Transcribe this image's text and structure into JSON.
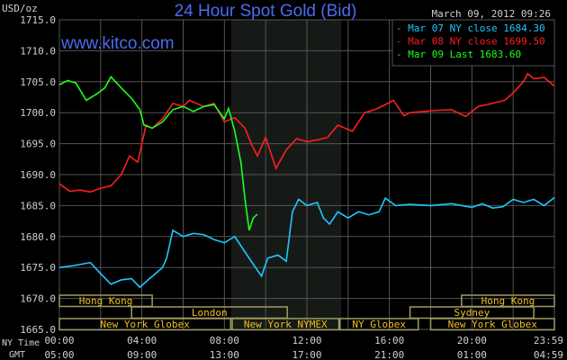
{
  "chart_data": {
    "type": "line",
    "title": "24 Hour Spot Gold (Bid)",
    "watermark": "www.kitco.com",
    "timestamp": "March 09, 2012 09:26",
    "ylabel": "USD/oz",
    "ylim": [
      1665,
      1715
    ],
    "yticks": [
      "1715.0",
      "1710.0",
      "1705.0",
      "1700.0",
      "1695.0",
      "1690.0",
      "1685.0",
      "1680.0",
      "1675.0",
      "1670.0",
      "1665.0"
    ],
    "xlim": [
      0,
      24
    ],
    "x_row1_label": "NY Time",
    "x_row2_label": "GMT",
    "xticks_ny": [
      "00:00",
      "04:00",
      "08:00",
      "12:00",
      "16:00",
      "20:00",
      "23:59"
    ],
    "xticks_gmt": [
      "05:00",
      "09:00",
      "13:00",
      "17:00",
      "21:00",
      "01:00",
      "04:59"
    ],
    "grid": true,
    "shaded_hours": [
      8.33,
      13.67
    ],
    "legend_position": "top-right",
    "colors": {
      "bg": "#000000",
      "grid": "#555555",
      "title": "#4a6cf0",
      "session": "#a09a60",
      "session_text": "#f0c020",
      "shade": "#161a16"
    },
    "series": [
      {
        "name": "Mar 07 NY close",
        "value": "1684.30",
        "color": "#1ec8ff",
        "points": [
          [
            0,
            1675
          ],
          [
            0.7,
            1675.3
          ],
          [
            1.5,
            1675.8
          ],
          [
            2,
            1674
          ],
          [
            2.5,
            1672.3
          ],
          [
            3,
            1673
          ],
          [
            3.5,
            1673.2
          ],
          [
            3.9,
            1671.8
          ],
          [
            4.3,
            1673
          ],
          [
            5,
            1675
          ],
          [
            5.2,
            1676.5
          ],
          [
            5.5,
            1681
          ],
          [
            6,
            1680
          ],
          [
            6.5,
            1680.5
          ],
          [
            7,
            1680.3
          ],
          [
            7.5,
            1679.5
          ],
          [
            8,
            1679
          ],
          [
            8.5,
            1680
          ],
          [
            9,
            1677.5
          ],
          [
            9.3,
            1676
          ],
          [
            9.8,
            1673.6
          ],
          [
            10.1,
            1676.5
          ],
          [
            10.6,
            1677
          ],
          [
            11,
            1676
          ],
          [
            11.3,
            1684
          ],
          [
            11.6,
            1686
          ],
          [
            12,
            1685
          ],
          [
            12.5,
            1685.5
          ],
          [
            12.8,
            1683
          ],
          [
            13.1,
            1682
          ],
          [
            13.5,
            1684
          ],
          [
            14,
            1683
          ],
          [
            14.5,
            1684
          ],
          [
            15,
            1683.5
          ],
          [
            15.5,
            1684
          ],
          [
            15.8,
            1686.2
          ],
          [
            16.3,
            1685
          ],
          [
            17,
            1685.2
          ],
          [
            18,
            1685
          ],
          [
            19,
            1685.3
          ],
          [
            20,
            1684.7
          ],
          [
            20.5,
            1685.3
          ],
          [
            21,
            1684.6
          ],
          [
            21.5,
            1684.8
          ],
          [
            22,
            1686
          ],
          [
            22.5,
            1685.5
          ],
          [
            23,
            1686
          ],
          [
            23.5,
            1685
          ],
          [
            24,
            1686.3
          ]
        ]
      },
      {
        "name": "Mar 08 NY close",
        "value": "1699.50",
        "color": "#ff1e1e",
        "points": [
          [
            0,
            1688.5
          ],
          [
            0.5,
            1687.3
          ],
          [
            1,
            1687.5
          ],
          [
            1.5,
            1687.2
          ],
          [
            2,
            1687.8
          ],
          [
            2.5,
            1688.2
          ],
          [
            3,
            1690
          ],
          [
            3.4,
            1693
          ],
          [
            3.8,
            1692
          ],
          [
            4.2,
            1698
          ],
          [
            4.5,
            1697.5
          ],
          [
            5,
            1699
          ],
          [
            5.5,
            1701.5
          ],
          [
            6,
            1701
          ],
          [
            6.3,
            1702
          ],
          [
            7,
            1701
          ],
          [
            7.5,
            1701.5
          ],
          [
            8,
            1698.5
          ],
          [
            8.5,
            1699.2
          ],
          [
            9,
            1697.5
          ],
          [
            9.3,
            1695
          ],
          [
            9.6,
            1693
          ],
          [
            10,
            1696
          ],
          [
            10.5,
            1691
          ],
          [
            11,
            1694
          ],
          [
            11.5,
            1695.8
          ],
          [
            12,
            1695.3
          ],
          [
            12.5,
            1695.6
          ],
          [
            13,
            1696
          ],
          [
            13.5,
            1698
          ],
          [
            14.2,
            1697
          ],
          [
            14.8,
            1700
          ],
          [
            15.3,
            1700.5
          ],
          [
            15.8,
            1701.3
          ],
          [
            16.2,
            1702
          ],
          [
            16.7,
            1699.5
          ],
          [
            17,
            1700
          ],
          [
            18,
            1700.3
          ],
          [
            19,
            1700.5
          ],
          [
            19.7,
            1699.4
          ],
          [
            20.3,
            1701
          ],
          [
            21,
            1701.5
          ],
          [
            21.6,
            1702
          ],
          [
            22,
            1703.2
          ],
          [
            22.5,
            1705
          ],
          [
            22.7,
            1706.3
          ],
          [
            23,
            1705.5
          ],
          [
            23.5,
            1705.7
          ],
          [
            24,
            1704.3
          ]
        ]
      },
      {
        "name": "Mar 09 Last",
        "value": "1683.60",
        "color": "#1eff1e",
        "points": [
          [
            0,
            1704.5
          ],
          [
            0.4,
            1705.2
          ],
          [
            0.8,
            1704.8
          ],
          [
            1.3,
            1702
          ],
          [
            1.8,
            1703
          ],
          [
            2.2,
            1704
          ],
          [
            2.5,
            1705.8
          ],
          [
            3,
            1704
          ],
          [
            3.5,
            1702.3
          ],
          [
            3.9,
            1700.5
          ],
          [
            4.1,
            1698
          ],
          [
            4.5,
            1697.5
          ],
          [
            5,
            1698.5
          ],
          [
            5.5,
            1700.5
          ],
          [
            6,
            1701
          ],
          [
            6.5,
            1700.2
          ],
          [
            7,
            1701
          ],
          [
            7.5,
            1701.3
          ],
          [
            8,
            1699
          ],
          [
            8.2,
            1700.7
          ],
          [
            8.5,
            1697
          ],
          [
            8.8,
            1692
          ],
          [
            9.0,
            1686
          ],
          [
            9.2,
            1681
          ],
          [
            9.4,
            1683
          ],
          [
            9.6,
            1683.6
          ]
        ]
      }
    ],
    "sessions": [
      {
        "label": "Hong Kong",
        "row": 0,
        "start": 0,
        "end": 4.5
      },
      {
        "label": "Hong Kong",
        "row": 0,
        "start": 19.5,
        "end": 24
      },
      {
        "label": "London",
        "row": 1,
        "start": 3.5,
        "end": 11.05
      },
      {
        "label": "Sydney",
        "row": 1,
        "start": 17,
        "end": 23
      },
      {
        "label": "New York Globex",
        "row": 2,
        "start": 0,
        "end": 8.3
      },
      {
        "label": "New York NYMEX",
        "row": 2,
        "start": 8.38,
        "end": 13.55
      },
      {
        "label": "NY Globex",
        "row": 2,
        "start": 13.6,
        "end": 17.4
      },
      {
        "label": "New York Globex",
        "row": 2,
        "start": 18,
        "end": 24
      }
    ]
  }
}
